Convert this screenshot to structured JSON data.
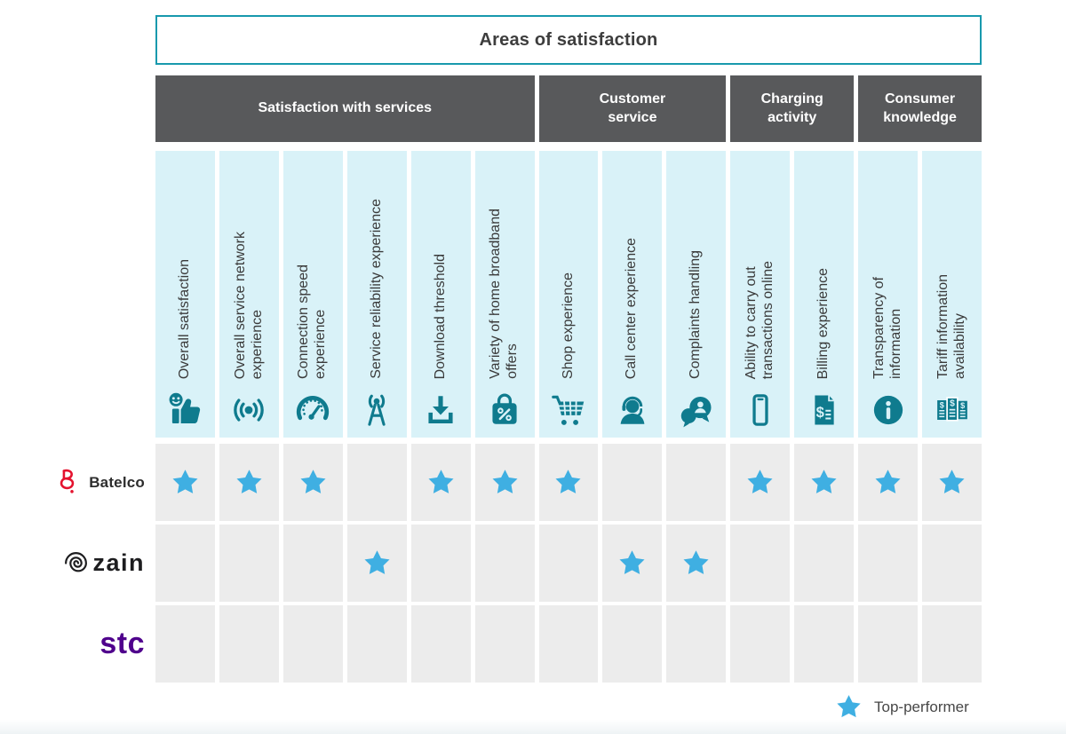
{
  "title": "Areas of satisfaction",
  "groups": [
    {
      "label": "Satisfaction with services",
      "span": 6
    },
    {
      "label": "Customer\nservice",
      "span": 3
    },
    {
      "label": "Charging\nactivity",
      "span": 2
    },
    {
      "label": "Consumer\nknowledge",
      "span": 2
    }
  ],
  "columns": [
    {
      "label": "Overall satisfaction",
      "lines": [
        "Overall satisfaction"
      ],
      "icon": "thumbs-up-person-icon"
    },
    {
      "label": "Overall service network experience",
      "lines": [
        "Overall service network",
        "experience"
      ],
      "icon": "wireless-signal-icon"
    },
    {
      "label": "Connection speed experience",
      "lines": [
        "Connection speed",
        "experience"
      ],
      "icon": "speedometer-icon"
    },
    {
      "label": "Service reliability experience",
      "lines": [
        "Service reliability experience"
      ],
      "icon": "antenna-tower-icon"
    },
    {
      "label": "Download threshold",
      "lines": [
        "Download threshold"
      ],
      "icon": "download-icon"
    },
    {
      "label": "Variety of home broadband offers",
      "lines": [
        "Variety of home broadband",
        "offers"
      ],
      "icon": "shopping-bag-discount-icon"
    },
    {
      "label": "Shop experience",
      "lines": [
        "Shop experience"
      ],
      "icon": "shopping-cart-icon"
    },
    {
      "label": "Call center experience",
      "lines": [
        "Call center experience"
      ],
      "icon": "headset-agent-icon"
    },
    {
      "label": "Complaints handling",
      "lines": [
        "Complaints handling"
      ],
      "icon": "chat-bubbles-icon"
    },
    {
      "label": "Ability to carry out transactions online",
      "lines": [
        "Ability to carry out",
        "transactions online"
      ],
      "icon": "smartphone-icon"
    },
    {
      "label": "Billing experience",
      "lines": [
        "Billing experience"
      ],
      "icon": "invoice-icon"
    },
    {
      "label": "Transparency of information",
      "lines": [
        "Transparency of",
        "information"
      ],
      "icon": "info-circle-icon"
    },
    {
      "label": "Tariff information availability",
      "lines": [
        "Tariff information",
        "availability"
      ],
      "icon": "tariff-sheets-icon"
    }
  ],
  "rows": [
    {
      "operator": "Batelco",
      "logo": "batelco",
      "stars": [
        true,
        true,
        true,
        false,
        true,
        true,
        true,
        false,
        false,
        true,
        true,
        true,
        true
      ]
    },
    {
      "operator": "zain",
      "logo": "zain",
      "stars": [
        false,
        false,
        false,
        true,
        false,
        false,
        false,
        true,
        true,
        false,
        false,
        false,
        false
      ]
    },
    {
      "operator": "stc",
      "logo": "stc",
      "stars": [
        false,
        false,
        false,
        false,
        false,
        false,
        false,
        false,
        false,
        false,
        false,
        false,
        false
      ]
    }
  ],
  "legend": {
    "label": "Top-performer"
  },
  "colors": {
    "accent_teal": "#1899ad",
    "header_gray": "#58595b",
    "column_bg": "#d9f2f8",
    "icon_teal": "#0f7b8e",
    "cell_bg": "#ececec",
    "star_blue": "#3fafe2",
    "batelco_red": "#e4122e",
    "zain_black": "#1d1d1f",
    "stc_purple": "#4f008c"
  },
  "chart_data": {
    "type": "table",
    "title": "Areas of satisfaction",
    "column_groups": [
      {
        "name": "Satisfaction with services",
        "columns": 6
      },
      {
        "name": "Customer service",
        "columns": 3
      },
      {
        "name": "Charging activity",
        "columns": 2
      },
      {
        "name": "Consumer knowledge",
        "columns": 2
      }
    ],
    "columns": [
      "Overall satisfaction",
      "Overall service network experience",
      "Connection speed experience",
      "Service reliability experience",
      "Download threshold",
      "Variety of home broadband offers",
      "Shop experience",
      "Call center experience",
      "Complaints handling",
      "Ability to carry out transactions online",
      "Billing experience",
      "Transparency of information",
      "Tariff information availability"
    ],
    "rows": [
      {
        "name": "Batelco",
        "top_performer": [
          1,
          1,
          1,
          0,
          1,
          1,
          1,
          0,
          0,
          1,
          1,
          1,
          1
        ]
      },
      {
        "name": "zain",
        "top_performer": [
          0,
          0,
          0,
          1,
          0,
          0,
          0,
          1,
          1,
          0,
          0,
          0,
          0
        ]
      },
      {
        "name": "stc",
        "top_performer": [
          0,
          0,
          0,
          0,
          0,
          0,
          0,
          0,
          0,
          0,
          0,
          0,
          0
        ]
      }
    ],
    "legend": "star = Top-performer"
  }
}
